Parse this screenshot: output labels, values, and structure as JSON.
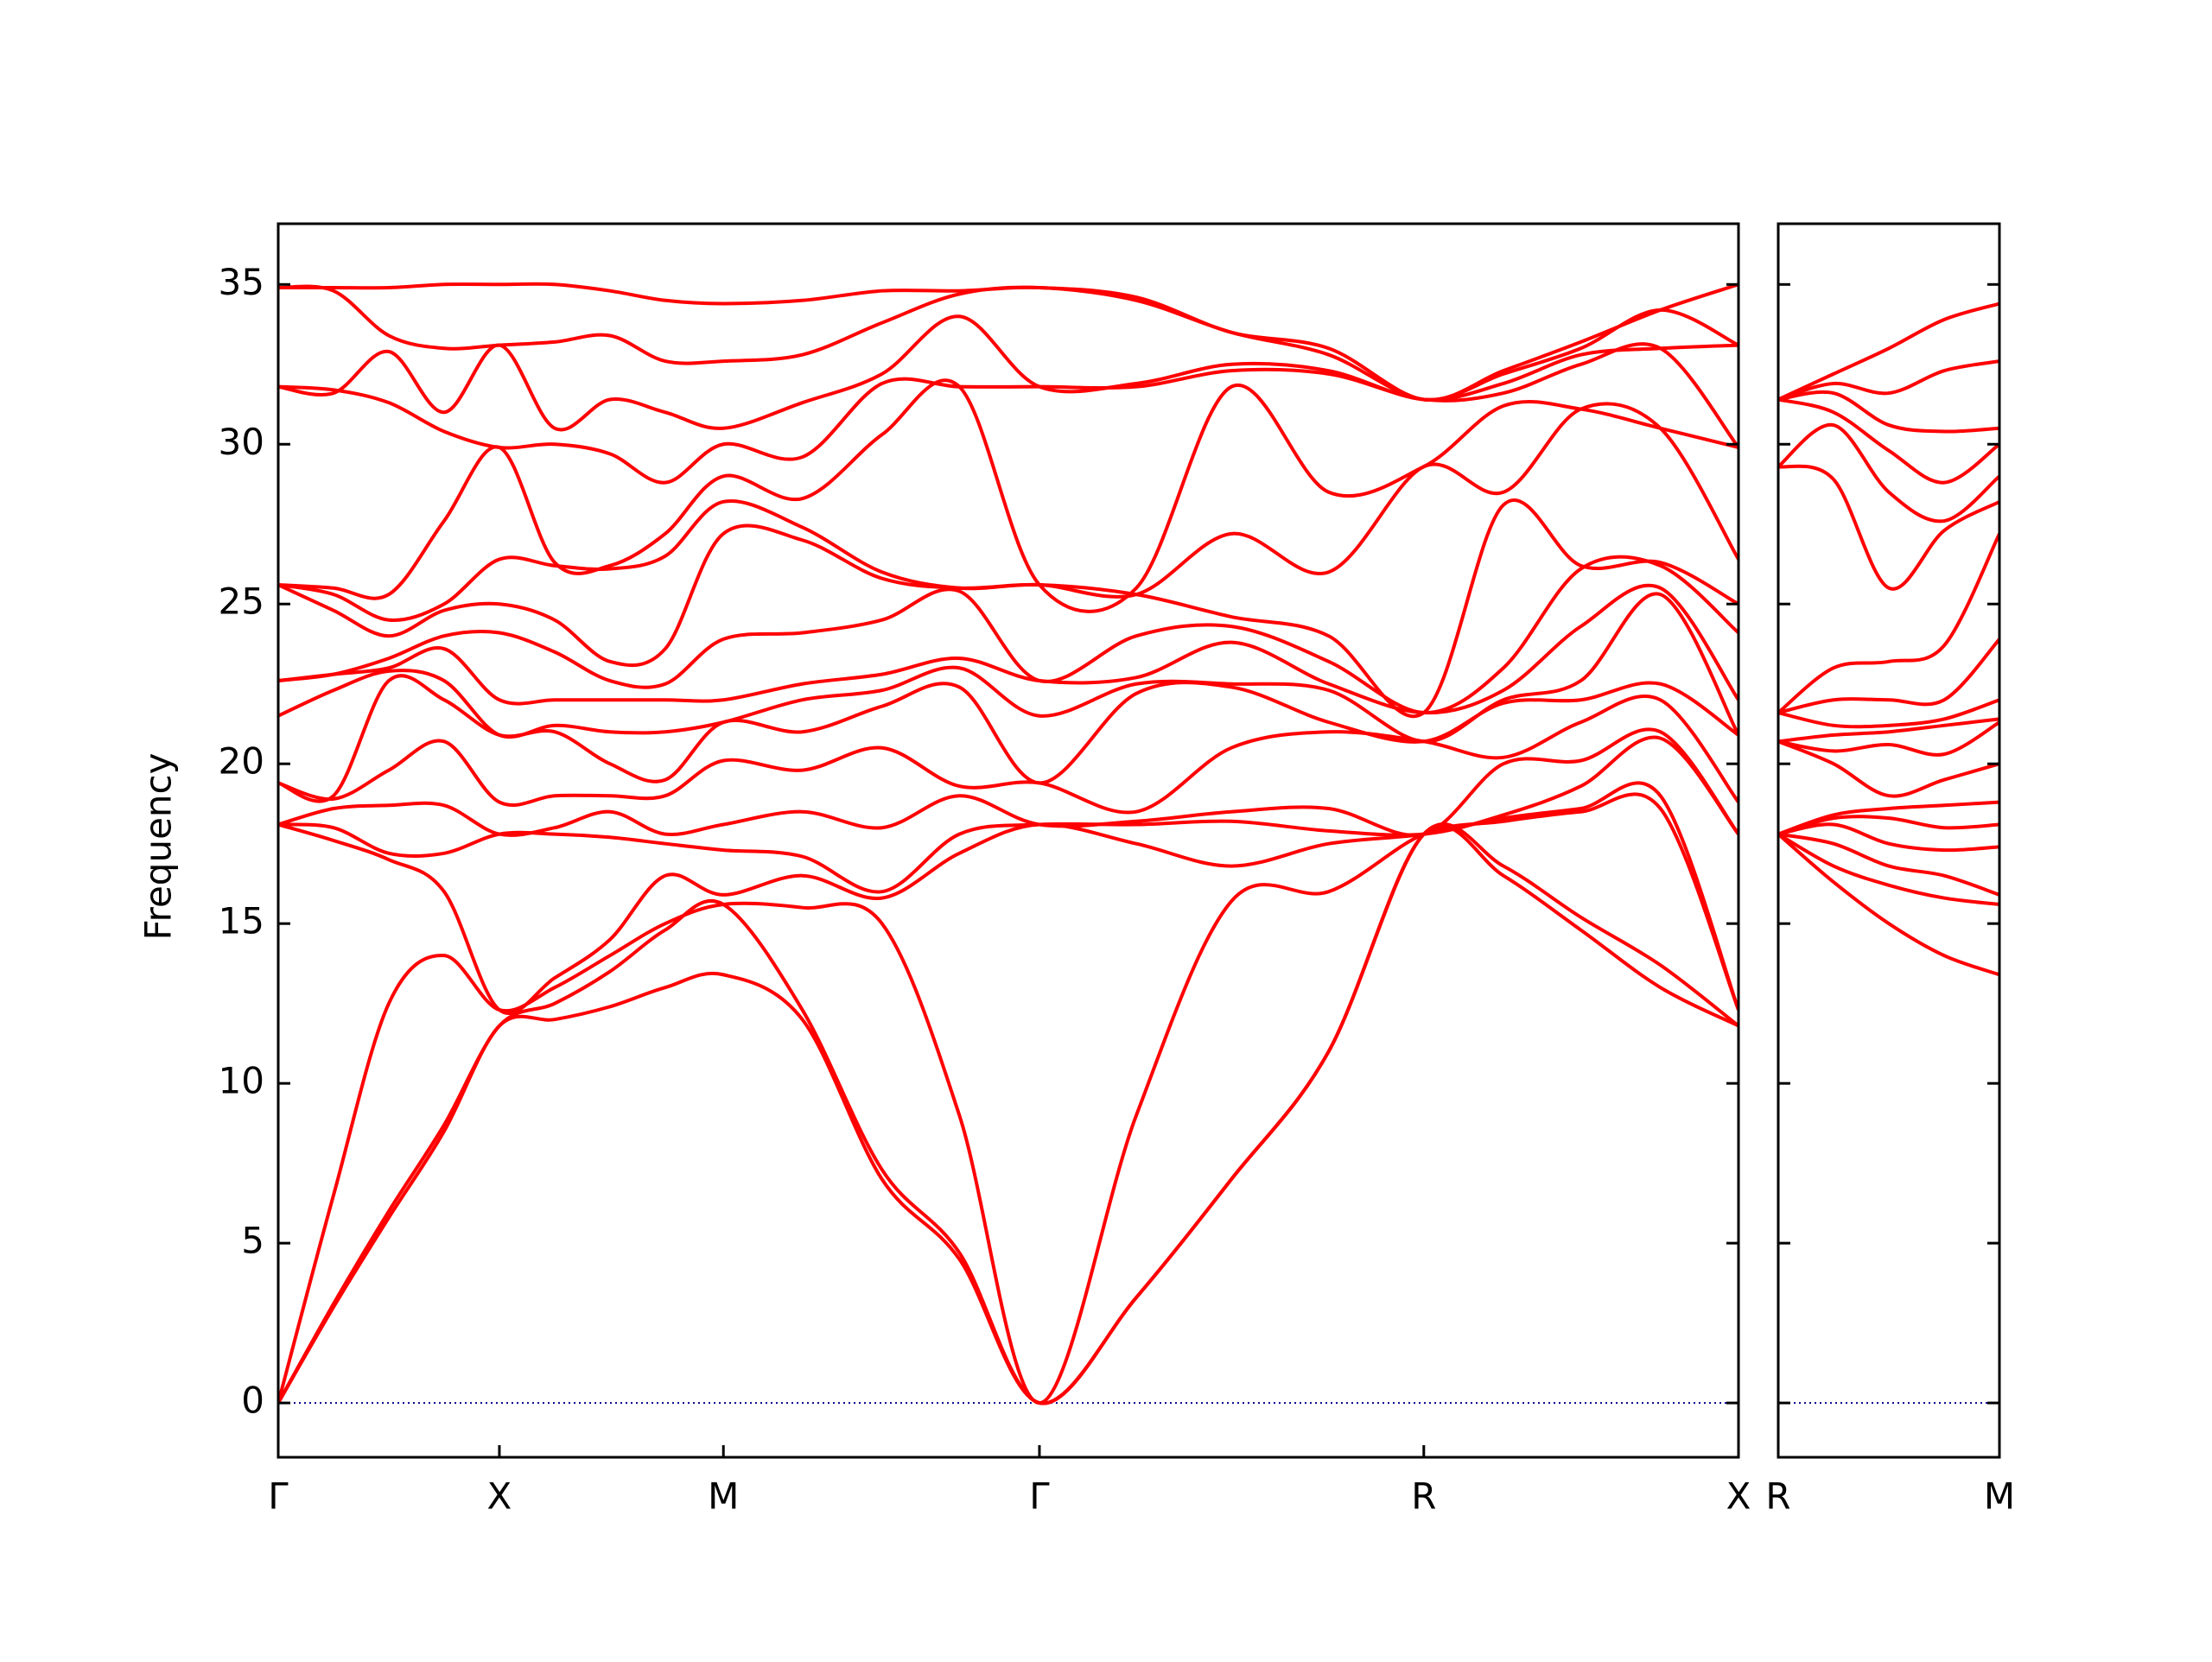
{
  "chart_data": [
    {
      "type": "line",
      "ylabel": "Frequency",
      "x": [
        0,
        0.25,
        0.5,
        0.75,
        1,
        1.25,
        1.5,
        1.75,
        2.013,
        2.37,
        2.73,
        3.08,
        3.442,
        3.88,
        4.31,
        4.75,
        5.18,
        5.54,
        5.89,
        6.25,
        6.603
      ],
      "xlim": [
        0,
        6.603
      ],
      "ylim": [
        -1.7,
        36.9
      ],
      "xticks": [
        {
          "value": 0,
          "label": "Γ"
        },
        {
          "value": 1,
          "label": "X"
        },
        {
          "value": 2.013,
          "label": "M"
        },
        {
          "value": 3.442,
          "label": "Γ"
        },
        {
          "value": 5.18,
          "label": "R"
        },
        {
          "value": 6.603,
          "label": "X"
        }
      ],
      "yticks": [
        0,
        5,
        10,
        15,
        20,
        25,
        30,
        35
      ],
      "show_ytick_labels": true,
      "hline": 0,
      "hline_color": "#00008b",
      "series": [
        {
          "color": "#ff0000",
          "values": [
            0,
            3.0,
            5.8,
            8.5,
            11.8,
            12.0,
            12.4,
            13.0,
            13.4,
            12.0,
            7.0,
            4.5,
            0,
            3.3,
            7.0,
            11.0,
            17.8,
            16.5,
            14.8,
            13.0,
            11.8
          ]
        },
        {
          "color": "#ff0000",
          "values": [
            0,
            3.1,
            6.0,
            8.7,
            11.8,
            12.5,
            13.5,
            14.8,
            15.6,
            12.3,
            7.3,
            4.7,
            0,
            3.3,
            7.0,
            11.0,
            17.8,
            16.8,
            15.2,
            13.7,
            11.8
          ]
        },
        {
          "color": "#ff0000",
          "values": [
            0,
            6.5,
            12.5,
            14.0,
            12.3,
            13.0,
            14.0,
            15.0,
            15.6,
            15.5,
            15.0,
            9.0,
            0,
            9.0,
            15.7,
            16.0,
            17.8,
            18.2,
            18.5,
            18.6,
            12.3
          ]
        },
        {
          "color": "#ff0000",
          "values": [
            18.1,
            17.6,
            17.0,
            16.0,
            12.3,
            13.3,
            14.5,
            16.5,
            15.9,
            16.5,
            15.8,
            17.2,
            18.1,
            17.5,
            16.8,
            17.5,
            17.8,
            18.3,
            18.6,
            19.0,
            12.3
          ]
        },
        {
          "color": "#ff0000",
          "values": [
            18.1,
            18.0,
            17.2,
            17.2,
            17.8,
            17.8,
            17.7,
            17.5,
            17.3,
            17.1,
            16.0,
            17.8,
            18.1,
            18.1,
            18.2,
            17.9,
            17.8,
            18.4,
            19.3,
            20.8,
            17.8
          ]
        },
        {
          "color": "#ff0000",
          "values": [
            18.1,
            18.6,
            18.7,
            18.7,
            17.8,
            18.0,
            18.5,
            17.8,
            18.1,
            18.5,
            18.0,
            19.0,
            18.1,
            18.2,
            18.5,
            18.6,
            17.8,
            20.0,
            20.1,
            21.0,
            17.8
          ]
        },
        {
          "color": "#ff0000",
          "values": [
            19.4,
            18.9,
            19.8,
            20.7,
            18.8,
            19.0,
            19.0,
            19.0,
            20.1,
            19.8,
            20.5,
            19.3,
            19.4,
            18.5,
            20.5,
            21.0,
            20.7,
            20.2,
            21.3,
            22.0,
            18.8
          ]
        },
        {
          "color": "#ff0000",
          "values": [
            19.4,
            19.0,
            22.6,
            22.0,
            20.9,
            21.0,
            20.0,
            19.5,
            21.3,
            21.0,
            21.8,
            22.4,
            19.4,
            22.2,
            22.4,
            21.3,
            20.7,
            21.9,
            22.0,
            22.5,
            20.9
          ]
        },
        {
          "color": "#ff0000",
          "values": [
            21.5,
            22.3,
            22.9,
            22.6,
            20.9,
            21.2,
            21.0,
            21.0,
            21.3,
            22.0,
            22.3,
            23.0,
            21.5,
            22.5,
            22.5,
            22.3,
            20.7,
            22.0,
            22.6,
            25.3,
            20.9
          ]
        },
        {
          "color": "#ff0000",
          "values": [
            22.6,
            22.8,
            23.0,
            23.6,
            22.0,
            22.0,
            22.0,
            22.0,
            22.0,
            22.5,
            22.8,
            23.3,
            22.6,
            22.7,
            23.8,
            22.5,
            21.6,
            22.3,
            24.3,
            25.5,
            22.0
          ]
        },
        {
          "color": "#ff0000",
          "values": [
            22.6,
            22.8,
            23.3,
            24.0,
            24.1,
            23.5,
            22.6,
            22.5,
            23.9,
            24.1,
            24.5,
            25.4,
            22.6,
            24.0,
            24.3,
            23.2,
            21.6,
            23.0,
            26.1,
            26.2,
            24.1
          ]
        },
        {
          "color": "#ff0000",
          "values": [
            25.6,
            24.8,
            24.0,
            24.8,
            25.0,
            24.5,
            23.2,
            23.6,
            27.2,
            27.0,
            25.8,
            25.5,
            25.6,
            25.3,
            24.6,
            24.0,
            21.6,
            28.1,
            26.2,
            26.3,
            25.0
          ]
        },
        {
          "color": "#ff0000",
          "values": [
            25.6,
            25.3,
            24.5,
            25.0,
            26.4,
            26.2,
            26.1,
            26.5,
            28.2,
            27.4,
            26.0,
            25.5,
            25.6,
            25.3,
            27.2,
            26.0,
            29.3,
            28.5,
            31.1,
            30.5,
            26.4
          ]
        },
        {
          "color": "#ff0000",
          "values": [
            25.6,
            25.5,
            25.3,
            27.6,
            29.9,
            26.3,
            26.2,
            27.2,
            29.0,
            28.3,
            30.3,
            31.8,
            25.6,
            25.5,
            31.8,
            28.5,
            29.3,
            31.2,
            31.1,
            30.5,
            29.9
          ]
        },
        {
          "color": "#ff0000",
          "values": [
            31.8,
            31.7,
            31.3,
            30.4,
            29.9,
            30.0,
            29.7,
            28.8,
            30.0,
            29.6,
            31.9,
            31.8,
            31.8,
            31.8,
            32.3,
            32.2,
            31.4,
            31.6,
            32.5,
            33.0,
            29.9
          ]
        },
        {
          "color": "#ff0000",
          "values": [
            31.8,
            31.6,
            32.9,
            31.0,
            33.1,
            30.5,
            31.4,
            31.0,
            30.5,
            31.3,
            32.2,
            34.0,
            31.8,
            31.9,
            32.5,
            32.3,
            31.4,
            31.9,
            32.8,
            33.0,
            33.1
          ]
        },
        {
          "color": "#ff0000",
          "values": [
            34.9,
            34.8,
            33.4,
            33.0,
            33.1,
            33.2,
            33.4,
            32.6,
            32.6,
            32.8,
            33.8,
            34.7,
            34.9,
            34.5,
            33.5,
            32.8,
            31.4,
            32.2,
            33.0,
            34.2,
            33.1
          ]
        },
        {
          "color": "#ff0000",
          "values": [
            34.9,
            34.9,
            34.9,
            35.0,
            35.0,
            35.0,
            34.8,
            34.5,
            34.4,
            34.5,
            34.8,
            34.8,
            34.9,
            34.6,
            33.5,
            33.0,
            31.4,
            32.3,
            33.2,
            34.2,
            35.0
          ]
        }
      ]
    },
    {
      "type": "line",
      "x": [
        0,
        0.25,
        0.5,
        0.75,
        1
      ],
      "xlim": [
        0,
        1
      ],
      "ylim": [
        -1.7,
        36.9
      ],
      "xticks": [
        {
          "value": 0,
          "label": "R"
        },
        {
          "value": 1,
          "label": "M"
        }
      ],
      "yticks": [
        0,
        5,
        10,
        15,
        20,
        25,
        30,
        35
      ],
      "show_ytick_labels": false,
      "hline": 0,
      "hline_color": "#00008b",
      "series": [
        {
          "color": "#ff0000",
          "values": [
            17.8,
            16.3,
            15.0,
            14.0,
            13.4
          ]
        },
        {
          "color": "#ff0000",
          "values": [
            17.8,
            16.8,
            16.2,
            15.8,
            15.6
          ]
        },
        {
          "color": "#ff0000",
          "values": [
            17.8,
            17.5,
            16.8,
            16.5,
            15.9
          ]
        },
        {
          "color": "#ff0000",
          "values": [
            17.8,
            18.1,
            17.5,
            17.3,
            17.4
          ]
        },
        {
          "color": "#ff0000",
          "values": [
            17.8,
            18.3,
            18.3,
            18.0,
            18.1
          ]
        },
        {
          "color": "#ff0000",
          "values": [
            17.8,
            18.4,
            18.6,
            18.7,
            18.8
          ]
        },
        {
          "color": "#ff0000",
          "values": [
            20.7,
            20.0,
            19.0,
            19.5,
            20.0
          ]
        },
        {
          "color": "#ff0000",
          "values": [
            20.7,
            20.4,
            20.6,
            20.3,
            21.3
          ]
        },
        {
          "color": "#ff0000",
          "values": [
            20.7,
            20.9,
            21.0,
            21.2,
            21.4
          ]
        },
        {
          "color": "#ff0000",
          "values": [
            21.6,
            21.2,
            21.2,
            21.4,
            22.0
          ]
        },
        {
          "color": "#ff0000",
          "values": [
            21.6,
            22.0,
            22.0,
            22.0,
            23.9
          ]
        },
        {
          "color": "#ff0000",
          "values": [
            21.6,
            23.0,
            23.2,
            23.7,
            27.2
          ]
        },
        {
          "color": "#ff0000",
          "values": [
            29.3,
            28.9,
            25.5,
            27.3,
            28.2
          ]
        },
        {
          "color": "#ff0000",
          "values": [
            29.3,
            30.6,
            28.5,
            27.6,
            29.0
          ]
        },
        {
          "color": "#ff0000",
          "values": [
            31.4,
            31.0,
            29.8,
            28.8,
            30.0
          ]
        },
        {
          "color": "#ff0000",
          "values": [
            31.4,
            31.6,
            30.6,
            30.4,
            30.5
          ]
        },
        {
          "color": "#ff0000",
          "values": [
            31.4,
            31.9,
            31.6,
            32.3,
            32.6
          ]
        },
        {
          "color": "#ff0000",
          "values": [
            31.4,
            32.2,
            33.0,
            33.9,
            34.4
          ]
        }
      ]
    }
  ]
}
